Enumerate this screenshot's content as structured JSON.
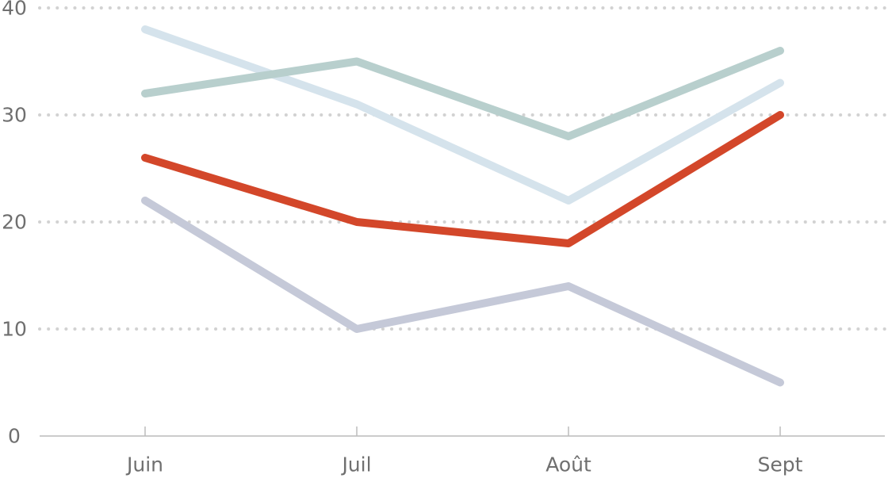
{
  "chart_data": {
    "type": "line",
    "title": "",
    "xlabel": "",
    "ylabel": "",
    "categories": [
      "Juin",
      "Juil",
      "Août",
      "Sept"
    ],
    "ylim": [
      0,
      40
    ],
    "yticks": [
      "0",
      "10",
      "20",
      "30",
      "40"
    ],
    "grid": true,
    "legend": "none",
    "series": [
      {
        "values": [
          22,
          10,
          14,
          5
        ],
        "color": "#c5c9d8"
      },
      {
        "values": [
          38,
          31,
          22,
          33
        ],
        "color": "#d5e3ec"
      },
      {
        "values": [
          32,
          35,
          28,
          36
        ],
        "color": "#b8cfcd"
      },
      {
        "values": [
          26,
          20,
          18,
          30
        ],
        "color": "#d3472a"
      }
    ]
  }
}
